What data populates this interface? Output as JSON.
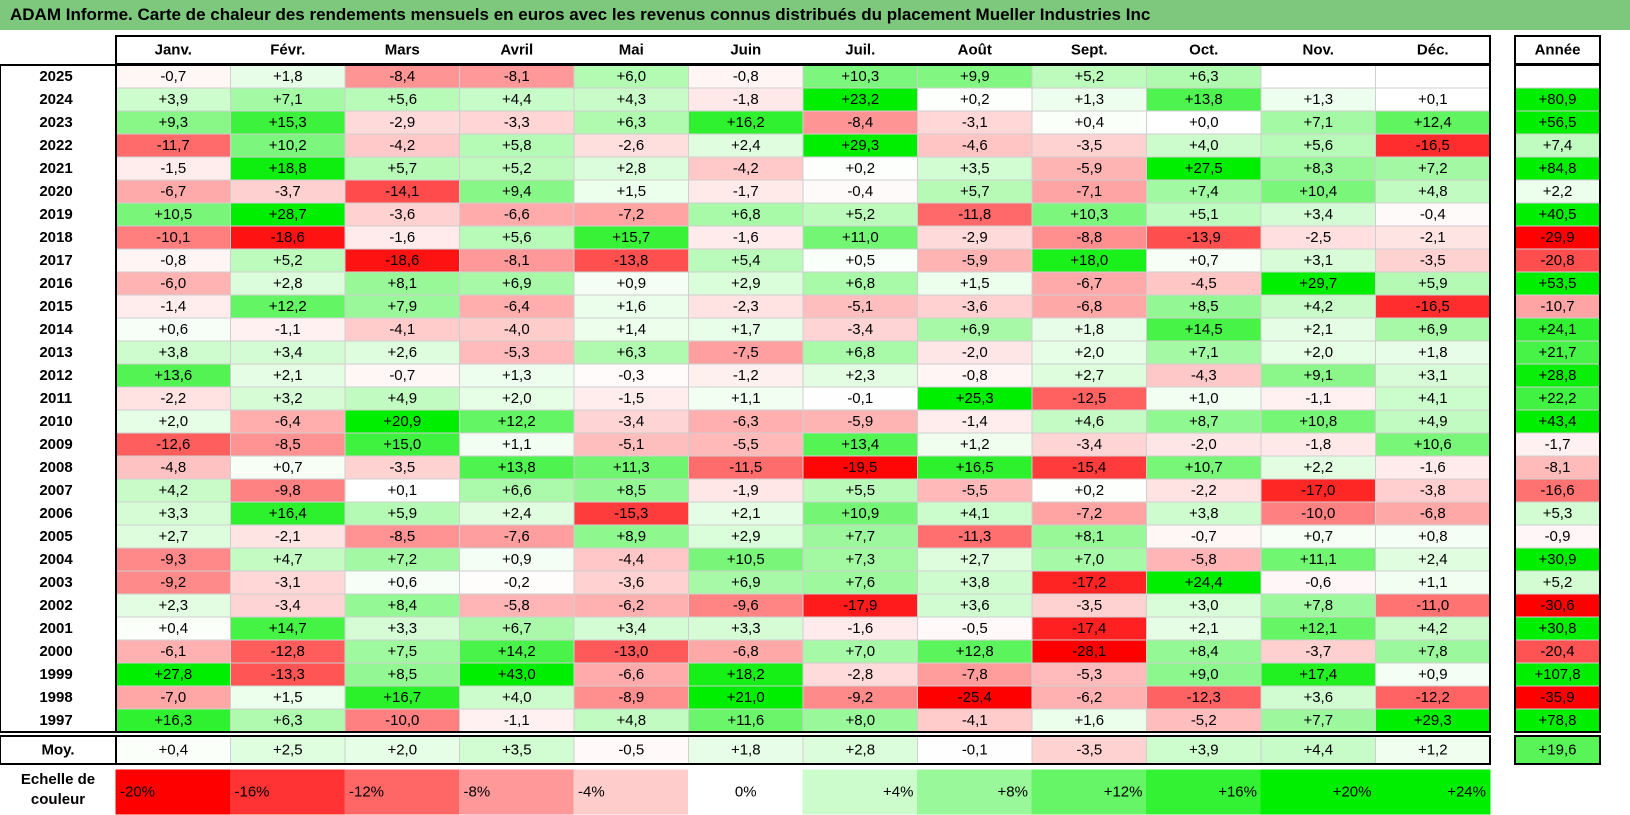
{
  "title": "ADAM Informe. Carte de chaleur des rendements mensuels en euros avec les revenus connus distribués du placement Mueller Industries Inc",
  "chart_data": {
    "type": "heatmap",
    "title": "ADAM Informe. Carte de chaleur des rendements mensuels en euros avec les revenus connus distribués du placement Mueller Industries Inc",
    "columns": [
      "Janv.",
      "Févr.",
      "Mars",
      "Avril",
      "Mai",
      "Juin",
      "Juil.",
      "Août",
      "Sept.",
      "Oct.",
      "Nov.",
      "Déc."
    ],
    "year_column_label": "Année",
    "average_row_label": "Moy.",
    "rows": [
      {
        "year": "2025",
        "values": [
          "-0,7",
          "+1,8",
          "-8,4",
          "-8,1",
          "+6,0",
          "-0,8",
          "+10,3",
          "+9,9",
          "+5,2",
          "+6,3",
          "",
          ""
        ],
        "annual": ""
      },
      {
        "year": "2024",
        "values": [
          "+3,9",
          "+7,1",
          "+5,6",
          "+4,4",
          "+4,3",
          "-1,8",
          "+23,2",
          "+0,2",
          "+1,3",
          "+13,8",
          "+1,3",
          "+0,1"
        ],
        "annual": "+80,9"
      },
      {
        "year": "2023",
        "values": [
          "+9,3",
          "+15,3",
          "-2,9",
          "-3,3",
          "+6,3",
          "+16,2",
          "-8,4",
          "-3,1",
          "+0,4",
          "+0,0",
          "+7,1",
          "+12,4"
        ],
        "annual": "+56,5"
      },
      {
        "year": "2022",
        "values": [
          "-11,7",
          "+10,2",
          "-4,2",
          "+5,8",
          "-2,6",
          "+2,4",
          "+29,3",
          "-4,6",
          "-3,5",
          "+4,0",
          "+5,6",
          "-16,5"
        ],
        "annual": "+7,4"
      },
      {
        "year": "2021",
        "values": [
          "-1,5",
          "+18,8",
          "+5,7",
          "+5,2",
          "+2,8",
          "-4,2",
          "+0,2",
          "+3,5",
          "-5,9",
          "+27,5",
          "+8,3",
          "+7,2"
        ],
        "annual": "+84,8"
      },
      {
        "year": "2020",
        "values": [
          "-6,7",
          "-3,7",
          "-14,1",
          "+9,4",
          "+1,5",
          "-1,7",
          "-0,4",
          "+5,7",
          "-7,1",
          "+7,4",
          "+10,4",
          "+4,8"
        ],
        "annual": "+2,2"
      },
      {
        "year": "2019",
        "values": [
          "+10,5",
          "+28,7",
          "-3,6",
          "-6,6",
          "-7,2",
          "+6,8",
          "+5,2",
          "-11,8",
          "+10,3",
          "+5,1",
          "+3,4",
          "-0,4"
        ],
        "annual": "+40,5"
      },
      {
        "year": "2018",
        "values": [
          "-10,1",
          "-18,6",
          "-1,6",
          "+5,6",
          "+15,7",
          "-1,6",
          "+11,0",
          "-2,9",
          "-8,8",
          "-13,9",
          "-2,5",
          "-2,1"
        ],
        "annual": "-29,9"
      },
      {
        "year": "2017",
        "values": [
          "-0,8",
          "+5,2",
          "-18,6",
          "-8,1",
          "-13,8",
          "+5,4",
          "+0,5",
          "-5,9",
          "+18,0",
          "+0,7",
          "+3,1",
          "-3,5"
        ],
        "annual": "-20,8"
      },
      {
        "year": "2016",
        "values": [
          "-6,0",
          "+2,8",
          "+8,1",
          "+6,9",
          "+0,9",
          "+2,9",
          "+6,8",
          "+1,5",
          "-6,7",
          "-4,5",
          "+29,7",
          "+5,9"
        ],
        "annual": "+53,5"
      },
      {
        "year": "2015",
        "values": [
          "-1,4",
          "+12,2",
          "+7,9",
          "-6,4",
          "+1,6",
          "-2,3",
          "-5,1",
          "-3,6",
          "-6,8",
          "+8,5",
          "+4,2",
          "-16,5"
        ],
        "annual": "-10,7"
      },
      {
        "year": "2014",
        "values": [
          "+0,6",
          "-1,1",
          "-4,1",
          "-4,0",
          "+1,4",
          "+1,7",
          "-3,4",
          "+6,9",
          "+1,8",
          "+14,5",
          "+2,1",
          "+6,9"
        ],
        "annual": "+24,1"
      },
      {
        "year": "2013",
        "values": [
          "+3,8",
          "+3,4",
          "+2,6",
          "-5,3",
          "+6,3",
          "-7,5",
          "+6,8",
          "-2,0",
          "+2,0",
          "+7,1",
          "+2,0",
          "+1,8"
        ],
        "annual": "+21,7"
      },
      {
        "year": "2012",
        "values": [
          "+13,6",
          "+2,1",
          "-0,7",
          "+1,3",
          "-0,3",
          "-1,2",
          "+2,3",
          "-0,8",
          "+2,7",
          "-4,3",
          "+9,1",
          "+3,1"
        ],
        "annual": "+28,8"
      },
      {
        "year": "2011",
        "values": [
          "-2,2",
          "+3,2",
          "+4,9",
          "+2,0",
          "-1,5",
          "+1,1",
          "-0,1",
          "+25,3",
          "-12,5",
          "+1,0",
          "-1,1",
          "+4,1"
        ],
        "annual": "+22,2"
      },
      {
        "year": "2010",
        "values": [
          "+2,0",
          "-6,4",
          "+20,9",
          "+12,2",
          "-3,4",
          "-6,3",
          "-5,9",
          "-1,4",
          "+4,6",
          "+8,7",
          "+10,8",
          "+4,9"
        ],
        "annual": "+43,4"
      },
      {
        "year": "2009",
        "values": [
          "-12,6",
          "-8,5",
          "+15,0",
          "+1,1",
          "-5,1",
          "-5,5",
          "+13,4",
          "+1,2",
          "-3,4",
          "-2,0",
          "-1,8",
          "+10,6"
        ],
        "annual": "-1,7"
      },
      {
        "year": "2008",
        "values": [
          "-4,8",
          "+0,7",
          "-3,5",
          "+13,8",
          "+11,3",
          "-11,5",
          "-19,5",
          "+16,5",
          "-15,4",
          "+10,7",
          "+2,2",
          "-1,6"
        ],
        "annual": "-8,1"
      },
      {
        "year": "2007",
        "values": [
          "+4,2",
          "-9,8",
          "+0,1",
          "+6,6",
          "+8,5",
          "-1,9",
          "+5,5",
          "-5,5",
          "+0,2",
          "-2,2",
          "-17,0",
          "-3,8"
        ],
        "annual": "-16,6"
      },
      {
        "year": "2006",
        "values": [
          "+3,3",
          "+16,4",
          "+5,9",
          "+2,4",
          "-15,3",
          "+2,1",
          "+10,9",
          "+4,1",
          "-7,2",
          "+3,8",
          "-10,0",
          "-6,8"
        ],
        "annual": "+5,3"
      },
      {
        "year": "2005",
        "values": [
          "+2,7",
          "-2,1",
          "-8,5",
          "-7,6",
          "+8,9",
          "+2,9",
          "+7,7",
          "-11,3",
          "+8,1",
          "-0,7",
          "+0,7",
          "+0,8"
        ],
        "annual": "-0,9"
      },
      {
        "year": "2004",
        "values": [
          "-9,3",
          "+4,7",
          "+7,2",
          "+0,9",
          "-4,4",
          "+10,5",
          "+7,3",
          "+2,7",
          "+7,0",
          "-5,8",
          "+11,1",
          "+2,4"
        ],
        "annual": "+30,9"
      },
      {
        "year": "2003",
        "values": [
          "-9,2",
          "-3,1",
          "+0,6",
          "-0,2",
          "-3,6",
          "+6,9",
          "+7,6",
          "+3,8",
          "-17,2",
          "+24,4",
          "-0,6",
          "+1,1"
        ],
        "annual": "+5,2"
      },
      {
        "year": "2002",
        "values": [
          "+2,3",
          "-3,4",
          "+8,4",
          "-5,8",
          "-6,2",
          "-9,6",
          "-17,9",
          "+3,6",
          "-3,5",
          "+3,0",
          "+7,8",
          "-11,0"
        ],
        "annual": "-30,6"
      },
      {
        "year": "2001",
        "values": [
          "+0,4",
          "+14,7",
          "+3,3",
          "+6,7",
          "+3,4",
          "+3,3",
          "-1,6",
          "-0,5",
          "-17,4",
          "+2,1",
          "+12,1",
          "+4,2"
        ],
        "annual": "+30,8"
      },
      {
        "year": "2000",
        "values": [
          "-6,1",
          "-12,8",
          "+7,5",
          "+14,2",
          "-13,0",
          "-6,8",
          "+7,0",
          "+12,8",
          "-28,1",
          "+8,4",
          "-3,7",
          "+7,8"
        ],
        "annual": "-20,4"
      },
      {
        "year": "1999",
        "values": [
          "+27,8",
          "-13,3",
          "+8,5",
          "+43,0",
          "-6,6",
          "+18,2",
          "-2,8",
          "-7,8",
          "-5,3",
          "+9,0",
          "+17,4",
          "+0,9"
        ],
        "annual": "+107,8"
      },
      {
        "year": "1998",
        "values": [
          "-7,0",
          "+1,5",
          "+16,7",
          "+4,0",
          "-8,9",
          "+21,0",
          "-9,2",
          "-25,4",
          "-6,2",
          "-12,3",
          "+3,6",
          "-12,2"
        ],
        "annual": "-35,9"
      },
      {
        "year": "1997",
        "values": [
          "+16,3",
          "+6,3",
          "-10,0",
          "-1,1",
          "+4,8",
          "+11,6",
          "+8,0",
          "-4,1",
          "+1,6",
          "-5,2",
          "+7,7",
          "+29,3"
        ],
        "annual": "+78,8"
      }
    ],
    "average": {
      "values": [
        "+0,4",
        "+2,5",
        "+2,0",
        "+3,5",
        "-0,5",
        "+1,8",
        "+2,8",
        "-0,1",
        "-3,5",
        "+3,9",
        "+4,4",
        "+1,2"
      ],
      "annual": "+19,6"
    },
    "legend": {
      "label": "Echelle de couleur",
      "stops": [
        "-20%",
        "-16%",
        "-12%",
        "-8%",
        "-4%",
        "0%",
        "+4%",
        "+8%",
        "+12%",
        "+16%",
        "+20%",
        "+24%"
      ],
      "stop_values": [
        -20,
        -16,
        -12,
        -8,
        -4,
        0,
        4,
        8,
        12,
        16,
        20,
        24
      ]
    },
    "colors": {
      "negative_max": "#ff0000",
      "neutral": "#ffffff",
      "positive_max": "#00ee00",
      "title_bar": "#7dc87d"
    }
  }
}
